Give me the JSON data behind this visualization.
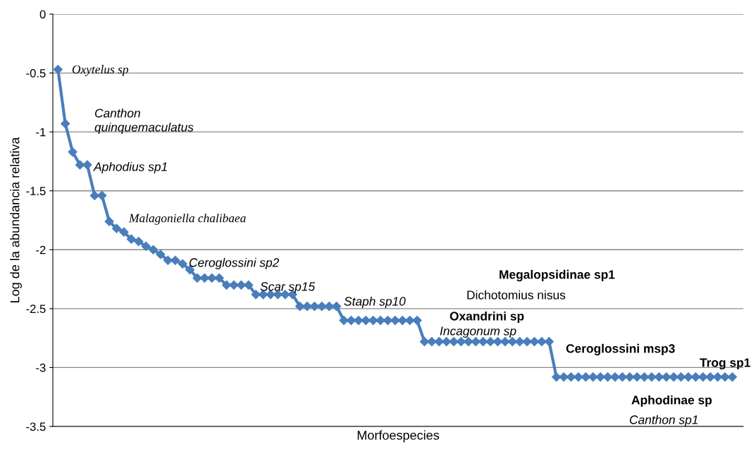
{
  "chart_data": {
    "type": "line",
    "xlabel": "Morfoespecies",
    "ylabel": "Log de la abundancia relativa",
    "categories": [
      null,
      null,
      null,
      null,
      null,
      null,
      null,
      null,
      null,
      null,
      null,
      null,
      null,
      null,
      null,
      null,
      null,
      null,
      null,
      null,
      null,
      null,
      null,
      null,
      null,
      null,
      null,
      null,
      null,
      null,
      null,
      null,
      null,
      null,
      null,
      null,
      null,
      null,
      null,
      null,
      null,
      null,
      null,
      null,
      null,
      null,
      null,
      null,
      null,
      null,
      null,
      null,
      null,
      null,
      null,
      null,
      null,
      null,
      null,
      null,
      null,
      null,
      null,
      null,
      null,
      null,
      null,
      null,
      null,
      null,
      null,
      null,
      null,
      null,
      null,
      null,
      null,
      null,
      null,
      null,
      null,
      null,
      null,
      null,
      null,
      null,
      null,
      null,
      null,
      null,
      null,
      null,
      null
    ],
    "series": [
      {
        "color": "#4a7ebb",
        "values": [
          -0.47,
          -0.93,
          -1.17,
          -1.28,
          -1.28,
          -1.54,
          -1.54,
          -1.76,
          -1.82,
          -1.85,
          -1.91,
          -1.93,
          -1.97,
          -2.0,
          -2.04,
          -2.09,
          -2.09,
          -2.12,
          -2.17,
          -2.24,
          -2.24,
          -2.24,
          -2.24,
          -2.3,
          -2.3,
          -2.3,
          -2.3,
          -2.38,
          -2.38,
          -2.38,
          -2.38,
          -2.38,
          -2.38,
          -2.48,
          -2.48,
          -2.48,
          -2.48,
          -2.48,
          -2.48,
          -2.6,
          -2.6,
          -2.6,
          -2.6,
          -2.6,
          -2.6,
          -2.6,
          -2.6,
          -2.6,
          -2.6,
          -2.6,
          -2.78,
          -2.78,
          -2.78,
          -2.78,
          -2.78,
          -2.78,
          -2.78,
          -2.78,
          -2.78,
          -2.78,
          -2.78,
          -2.78,
          -2.78,
          -2.78,
          -2.78,
          -2.78,
          -2.78,
          -2.78,
          -3.08,
          -3.08,
          -3.08,
          -3.08,
          -3.08,
          -3.08,
          -3.08,
          -3.08,
          -3.08,
          -3.08,
          -3.08,
          -3.08,
          -3.08,
          -3.08,
          -3.08,
          -3.08,
          -3.08,
          -3.08,
          -3.08,
          -3.08,
          -3.08,
          -3.08,
          -3.08,
          -3.08,
          -3.08
        ]
      }
    ],
    "ylim": [
      -3.5,
      0
    ],
    "yticks": [
      0,
      -0.5,
      -1,
      -1.5,
      -2,
      -2.5,
      -3,
      -3.5
    ],
    "grid": "y",
    "marker": "diamond",
    "line_style": "solid",
    "tick_labels": "y",
    "annotations": [
      "Oxytelus sp",
      "Canthon\nquinquemaculatus",
      "Aphodius sp1",
      "Malagoniella chalibaea",
      "Ceroglossini sp2",
      "Scar sp15",
      "Staph sp10",
      "Megalopsidinae sp1",
      "Dichotomius nisus",
      "Oxandrini sp",
      "Incagonum sp",
      "Ceroglossini msp3",
      "Trog sp1",
      "Aphodinae sp",
      "Canthon sp1"
    ]
  }
}
